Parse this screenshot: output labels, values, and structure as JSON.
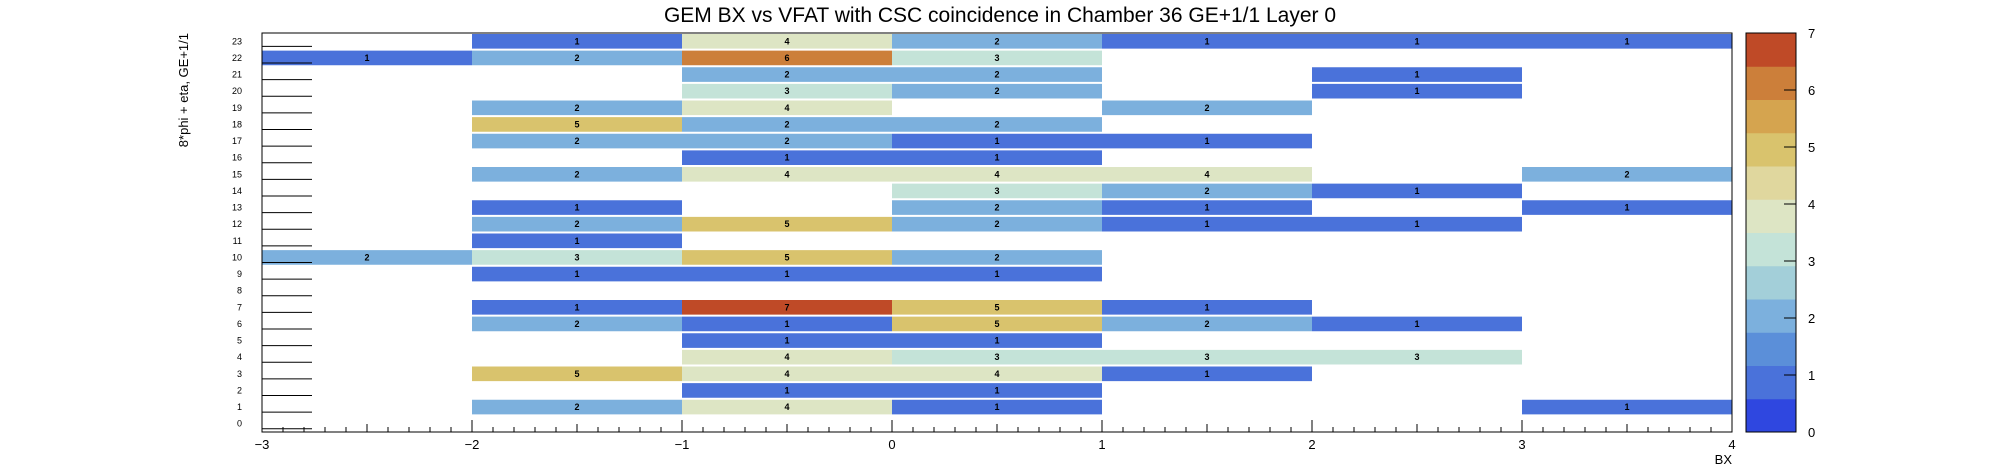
{
  "chart_data": {
    "type": "heatmap",
    "title": "GEM BX vs VFAT with CSC coincidence in Chamber 36 GE+1/1 Layer 0",
    "xlabel": "BX",
    "ylabel": "8*phi + eta, GE+1/1",
    "xlim": [
      -3,
      4
    ],
    "ylim": [
      0,
      24
    ],
    "x_ticks": [
      -3,
      -2,
      -1,
      0,
      1,
      2,
      3,
      4
    ],
    "x_tick_labels": [
      "−3",
      "−2",
      "−1",
      "0",
      "1",
      "2",
      "3",
      "4"
    ],
    "y_ticks": [
      0,
      1,
      2,
      3,
      4,
      5,
      6,
      7,
      8,
      9,
      10,
      11,
      12,
      13,
      14,
      15,
      16,
      17,
      18,
      19,
      20,
      21,
      22,
      23
    ],
    "z_range": [
      0,
      7
    ],
    "colorbar_ticks": [
      0,
      1,
      2,
      3,
      4,
      5,
      6,
      7
    ],
    "colormap": [
      "#2f47e0",
      "#4a72da",
      "#5b8fd9",
      "#7cb0dd",
      "#a3cfd9",
      "#c4e3d8",
      "#dde5c4",
      "#e0d79e",
      "#d9c36d",
      "#d5a44f",
      "#cc7f3a",
      "#bf4a27"
    ],
    "cells": [
      {
        "x": -2.5,
        "y": 22,
        "value": 1
      },
      {
        "x": -2.5,
        "y": 10,
        "value": 2
      },
      {
        "x": -1.5,
        "y": 23,
        "value": 1
      },
      {
        "x": -1.5,
        "y": 22,
        "value": 2
      },
      {
        "x": -1.5,
        "y": 19,
        "value": 2
      },
      {
        "x": -1.5,
        "y": 18,
        "value": 5
      },
      {
        "x": -1.5,
        "y": 17,
        "value": 2
      },
      {
        "x": -1.5,
        "y": 15,
        "value": 2
      },
      {
        "x": -1.5,
        "y": 13,
        "value": 1
      },
      {
        "x": -1.5,
        "y": 12,
        "value": 2
      },
      {
        "x": -1.5,
        "y": 11,
        "value": 1
      },
      {
        "x": -1.5,
        "y": 10,
        "value": 3
      },
      {
        "x": -1.5,
        "y": 9,
        "value": 1
      },
      {
        "x": -1.5,
        "y": 7,
        "value": 1
      },
      {
        "x": -1.5,
        "y": 6,
        "value": 2
      },
      {
        "x": -1.5,
        "y": 3,
        "value": 5
      },
      {
        "x": -1.5,
        "y": 1,
        "value": 2
      },
      {
        "x": -0.5,
        "y": 23,
        "value": 4
      },
      {
        "x": -0.5,
        "y": 22,
        "value": 6
      },
      {
        "x": -0.5,
        "y": 21,
        "value": 2
      },
      {
        "x": -0.5,
        "y": 20,
        "value": 3
      },
      {
        "x": -0.5,
        "y": 19,
        "value": 4
      },
      {
        "x": -0.5,
        "y": 18,
        "value": 2
      },
      {
        "x": -0.5,
        "y": 17,
        "value": 2
      },
      {
        "x": -0.5,
        "y": 16,
        "value": 1
      },
      {
        "x": -0.5,
        "y": 15,
        "value": 4
      },
      {
        "x": -0.5,
        "y": 12,
        "value": 5
      },
      {
        "x": -0.5,
        "y": 10,
        "value": 5
      },
      {
        "x": -0.5,
        "y": 9,
        "value": 1
      },
      {
        "x": -0.5,
        "y": 7,
        "value": 7
      },
      {
        "x": -0.5,
        "y": 6,
        "value": 1
      },
      {
        "x": -0.5,
        "y": 5,
        "value": 1
      },
      {
        "x": -0.5,
        "y": 4,
        "value": 4
      },
      {
        "x": -0.5,
        "y": 3,
        "value": 4
      },
      {
        "x": -0.5,
        "y": 2,
        "value": 1
      },
      {
        "x": -0.5,
        "y": 1,
        "value": 4
      },
      {
        "x": 0.5,
        "y": 23,
        "value": 2
      },
      {
        "x": 0.5,
        "y": 22,
        "value": 3
      },
      {
        "x": 0.5,
        "y": 21,
        "value": 2
      },
      {
        "x": 0.5,
        "y": 20,
        "value": 2
      },
      {
        "x": 0.5,
        "y": 18,
        "value": 2
      },
      {
        "x": 0.5,
        "y": 17,
        "value": 1
      },
      {
        "x": 0.5,
        "y": 16,
        "value": 1
      },
      {
        "x": 0.5,
        "y": 15,
        "value": 4
      },
      {
        "x": 0.5,
        "y": 14,
        "value": 3
      },
      {
        "x": 0.5,
        "y": 13,
        "value": 2
      },
      {
        "x": 0.5,
        "y": 12,
        "value": 2
      },
      {
        "x": 0.5,
        "y": 10,
        "value": 2
      },
      {
        "x": 0.5,
        "y": 9,
        "value": 1
      },
      {
        "x": 0.5,
        "y": 7,
        "value": 5
      },
      {
        "x": 0.5,
        "y": 6,
        "value": 5
      },
      {
        "x": 0.5,
        "y": 5,
        "value": 1
      },
      {
        "x": 0.5,
        "y": 4,
        "value": 3
      },
      {
        "x": 0.5,
        "y": 3,
        "value": 4
      },
      {
        "x": 0.5,
        "y": 2,
        "value": 1
      },
      {
        "x": 0.5,
        "y": 1,
        "value": 1
      },
      {
        "x": 1.5,
        "y": 23,
        "value": 1
      },
      {
        "x": 1.5,
        "y": 19,
        "value": 2
      },
      {
        "x": 1.5,
        "y": 17,
        "value": 1
      },
      {
        "x": 1.5,
        "y": 15,
        "value": 4
      },
      {
        "x": 1.5,
        "y": 14,
        "value": 2
      },
      {
        "x": 1.5,
        "y": 13,
        "value": 1
      },
      {
        "x": 1.5,
        "y": 12,
        "value": 1
      },
      {
        "x": 1.5,
        "y": 7,
        "value": 1
      },
      {
        "x": 1.5,
        "y": 6,
        "value": 2
      },
      {
        "x": 1.5,
        "y": 4,
        "value": 3
      },
      {
        "x": 1.5,
        "y": 3,
        "value": 1
      },
      {
        "x": 2.5,
        "y": 23,
        "value": 1
      },
      {
        "x": 2.5,
        "y": 21,
        "value": 1
      },
      {
        "x": 2.5,
        "y": 20,
        "value": 1
      },
      {
        "x": 2.5,
        "y": 14,
        "value": 1
      },
      {
        "x": 2.5,
        "y": 12,
        "value": 1
      },
      {
        "x": 2.5,
        "y": 6,
        "value": 1
      },
      {
        "x": 2.5,
        "y": 4,
        "value": 3
      },
      {
        "x": 3.5,
        "y": 23,
        "value": 1
      },
      {
        "x": 3.5,
        "y": 15,
        "value": 2
      },
      {
        "x": 3.5,
        "y": 13,
        "value": 1
      },
      {
        "x": 3.5,
        "y": 1,
        "value": 1
      }
    ],
    "grid": false,
    "legend": "colorbar-right"
  }
}
